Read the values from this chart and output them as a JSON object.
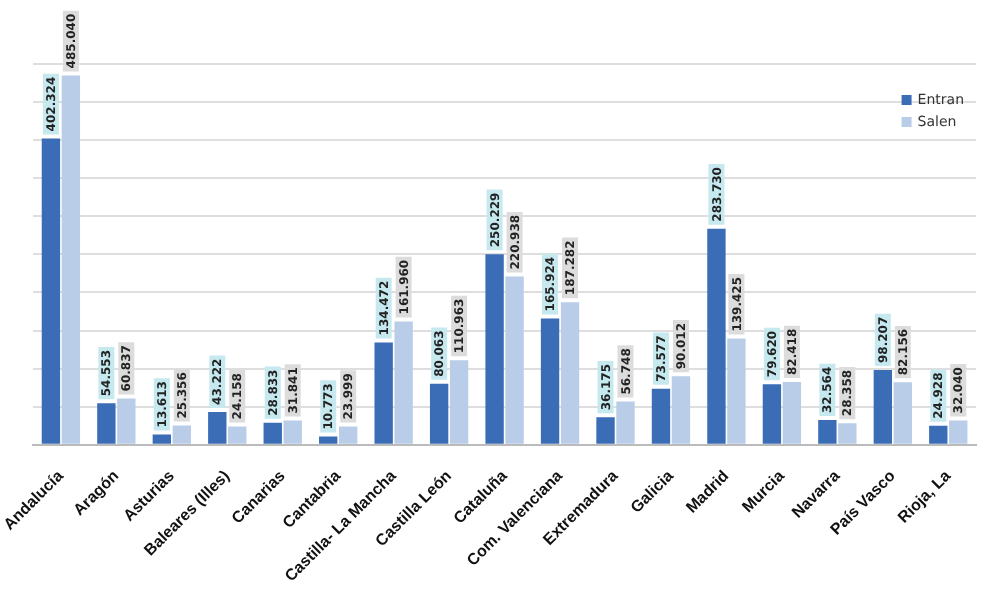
{
  "chart_data": {
    "type": "bar",
    "categories": [
      "Andalucía",
      "Aragón",
      "Asturias",
      "Baleares (Illes)",
      "Canarias",
      "Cantabria",
      "Castilla- La Mancha",
      "Castilla León",
      "Cataluña",
      "Com. Valenciana",
      "Extremadura",
      "Galicia",
      "Madrid",
      "Murcia",
      "Navarra",
      "País Vasco",
      "Rioja, La"
    ],
    "series": [
      {
        "name": "Entran",
        "color": "#3b6db6",
        "values": [
          402324,
          54553,
          13613,
          43222,
          28833,
          10773,
          134472,
          80063,
          250229,
          165924,
          36175,
          73577,
          283730,
          79620,
          32564,
          98207,
          24928
        ],
        "value_labels": [
          "402.324",
          "54.553",
          "13.613",
          "43.222",
          "28.833",
          "10.773",
          "134.472",
          "80.063",
          "250.229",
          "165.924",
          "36.175",
          "73.577",
          "283.730",
          "79.620",
          "32.564",
          "98.207",
          "24.928"
        ]
      },
      {
        "name": "Salen",
        "color": "#b9cde9",
        "values": [
          485040,
          60837,
          25356,
          24158,
          31841,
          23999,
          161960,
          110963,
          220938,
          187282,
          56748,
          90012,
          139425,
          82418,
          28358,
          82156,
          32040
        ],
        "value_labels": [
          "485.040",
          "60.837",
          "25.356",
          "24.158",
          "31.841",
          "23.999",
          "161.960",
          "110.963",
          "220.938",
          "187.282",
          "56.748",
          "90.012",
          "139.425",
          "82.418",
          "28.358",
          "82.156",
          "32.040"
        ]
      }
    ],
    "ylim": [
      0,
      500000
    ],
    "yticks": [
      {
        "value": 0,
        "label": null
      },
      {
        "value": 50000,
        "label": null
      },
      {
        "value": 100000,
        "label": null
      },
      {
        "value": 150000,
        "label": null
      },
      {
        "value": 200000,
        "label": null
      },
      {
        "value": 250000,
        "label": null
      },
      {
        "value": 300000,
        "label": null
      },
      {
        "value": 350000,
        "label": null
      },
      {
        "value": 400000,
        "label": null
      },
      {
        "value": 450000,
        "label": null
      },
      {
        "value": 500000,
        "label": null
      }
    ],
    "tick_labels": "x",
    "grid": "y",
    "legend": "top right"
  }
}
